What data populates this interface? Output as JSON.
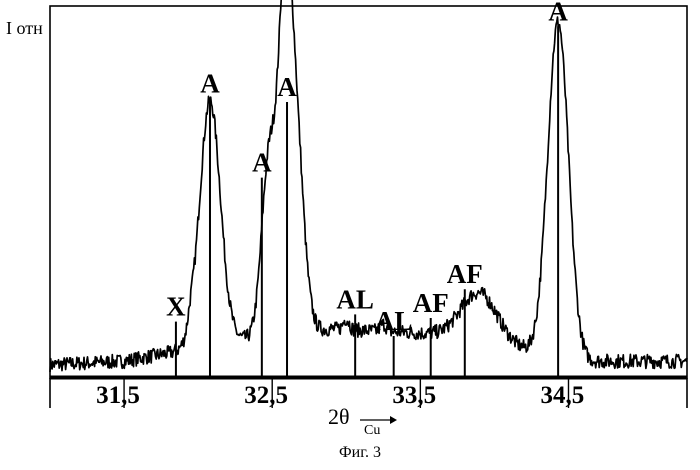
{
  "chart_data": {
    "type": "line",
    "title": "",
    "ylabel": "I отн",
    "xlabel": {
      "main": "2θ",
      "sub": "Cu"
    },
    "caption": "Фиг. 3",
    "xlim": [
      31.0,
      35.3
    ],
    "ylim": [
      0,
      100
    ],
    "grid": false,
    "xticks": [
      {
        "value": 31.5,
        "label": "31,5"
      },
      {
        "value": 32.5,
        "label": "32,5"
      },
      {
        "value": 33.5,
        "label": "33,5"
      },
      {
        "value": 34.5,
        "label": "34,5"
      }
    ],
    "background": [
      [
        31.0,
        2
      ],
      [
        31.5,
        3
      ],
      [
        31.9,
        6
      ],
      [
        32.3,
        9
      ],
      [
        32.9,
        12
      ],
      [
        33.4,
        11
      ],
      [
        33.8,
        10
      ],
      [
        34.2,
        6
      ],
      [
        34.6,
        3
      ],
      [
        35.3,
        3
      ]
    ],
    "peaks": [
      {
        "x": 31.95,
        "height": 3,
        "width": 0.02
      },
      {
        "x": 32.08,
        "height": 68,
        "width": 0.07
      },
      {
        "x": 32.48,
        "height": 50,
        "width": 0.05
      },
      {
        "x": 32.58,
        "height": 58,
        "width": 0.04
      },
      {
        "x": 32.64,
        "height": 70,
        "width": 0.06
      },
      {
        "x": 33.0,
        "height": 3,
        "width": 0.02
      },
      {
        "x": 33.25,
        "height": 2,
        "width": 0.02
      },
      {
        "x": 33.9,
        "height": 13,
        "width": 0.12
      },
      {
        "x": 34.43,
        "height": 93,
        "width": 0.07
      }
    ],
    "markers": [
      {
        "label": "X",
        "x": 31.85,
        "top": 14
      },
      {
        "label": "A",
        "x": 32.08,
        "top": 76
      },
      {
        "label": "A",
        "x": 32.43,
        "top": 54
      },
      {
        "label": "A",
        "x": 32.6,
        "top": 75
      },
      {
        "label": "AL",
        "x": 33.06,
        "top": 16
      },
      {
        "label": "AL",
        "x": 33.32,
        "top": 10
      },
      {
        "label": "AF",
        "x": 33.57,
        "top": 15
      },
      {
        "label": "AF",
        "x": 33.8,
        "top": 23
      },
      {
        "label": "A",
        "x": 34.43,
        "top": 96
      }
    ]
  }
}
